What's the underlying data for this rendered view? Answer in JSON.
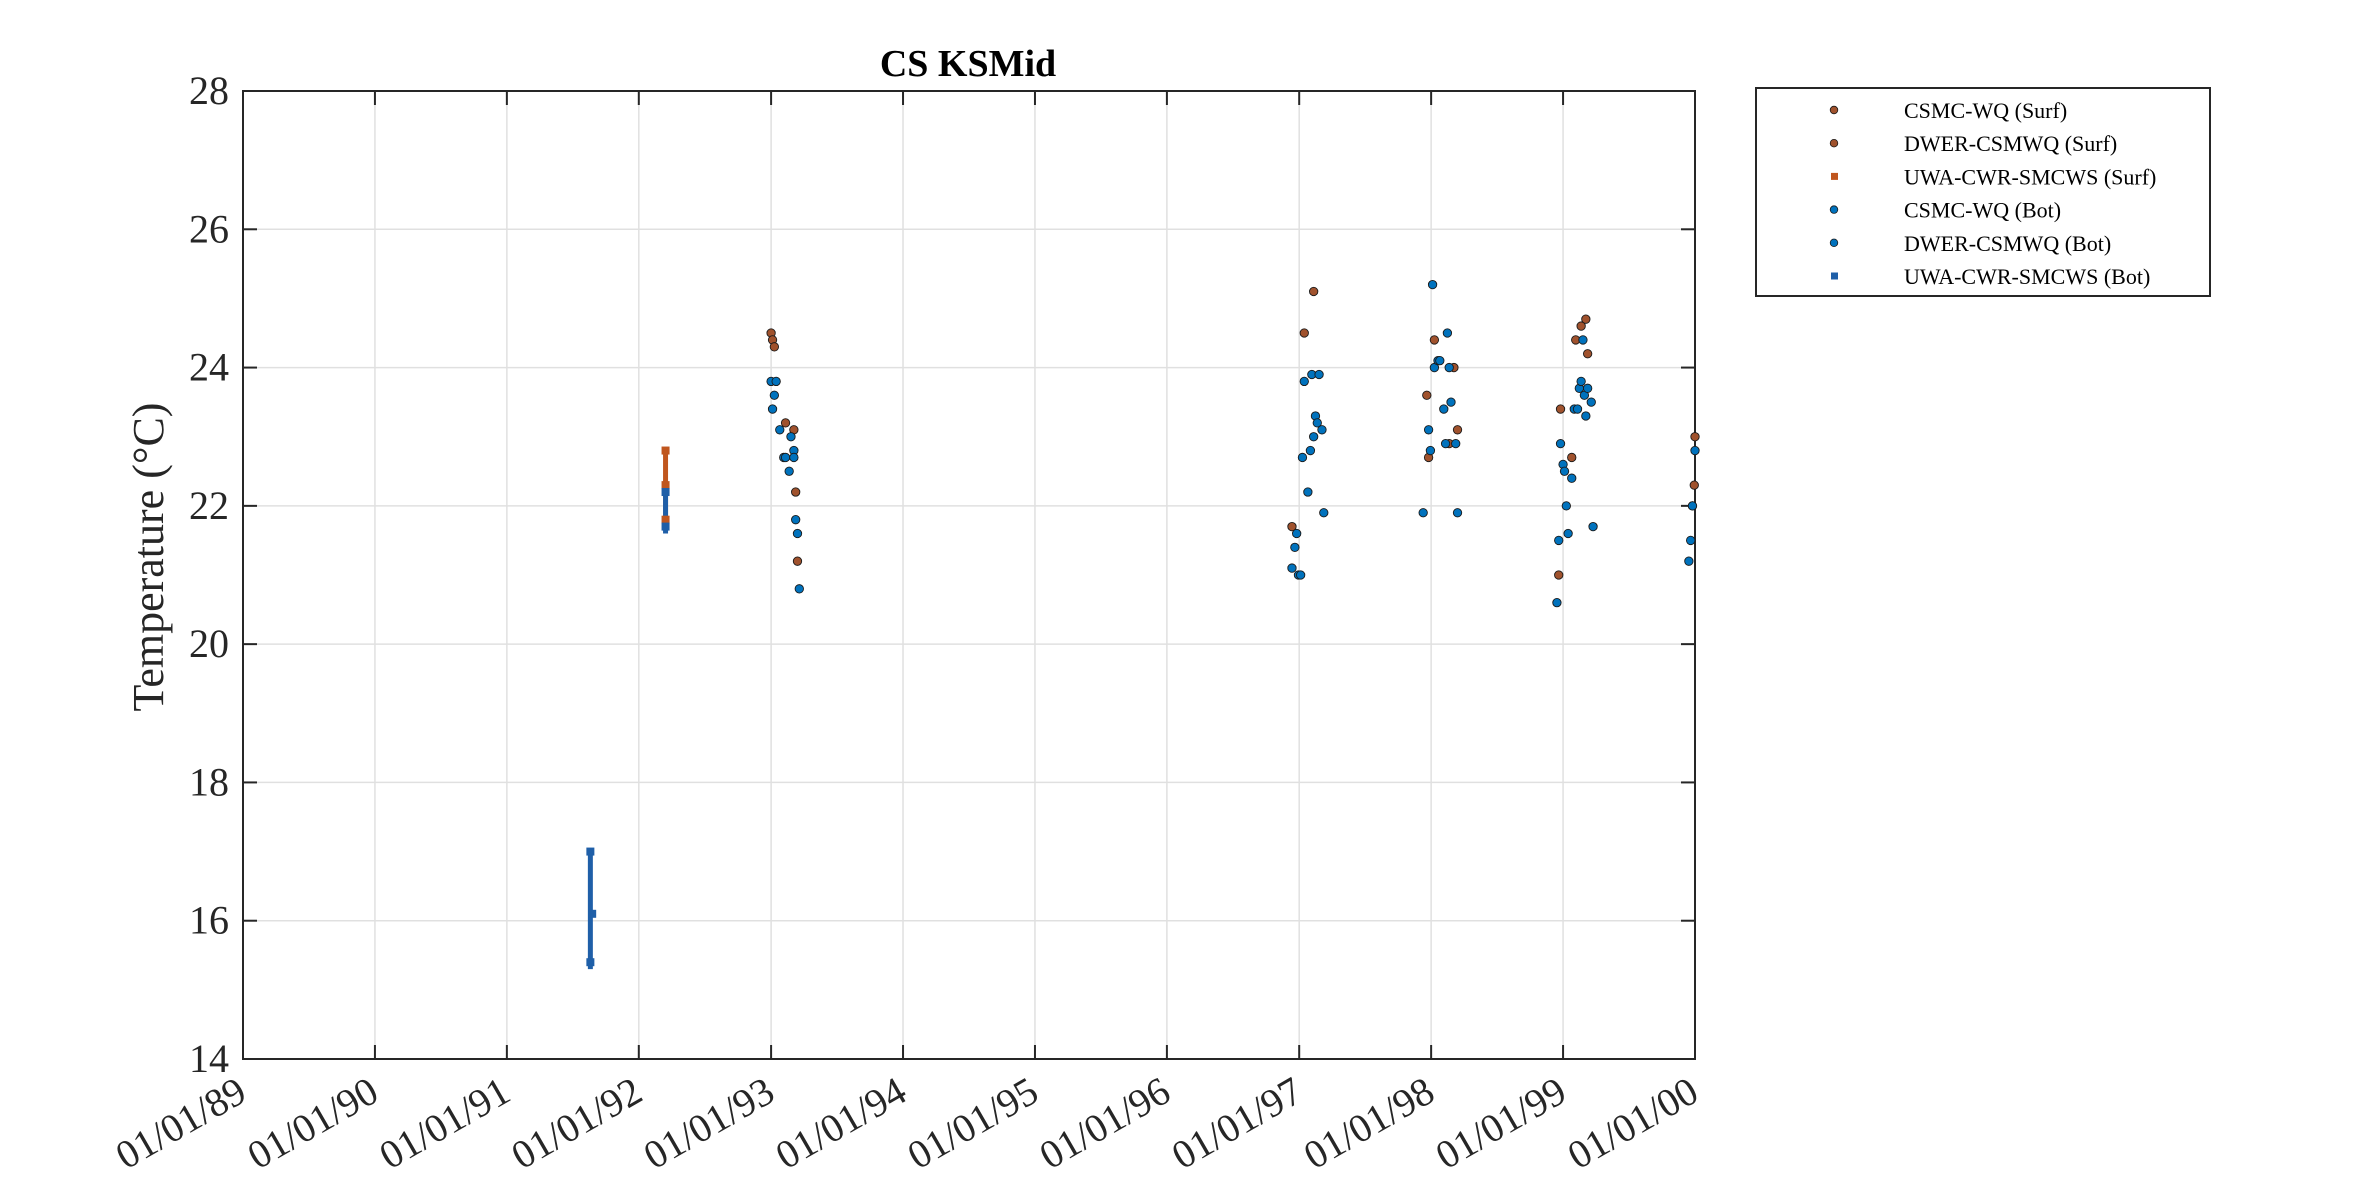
{
  "chart_data": {
    "type": "scatter",
    "title": "CS KSMid",
    "xlabel": "",
    "ylabel": "Temperature (°C)",
    "x_type": "date",
    "xlim": [
      "1989-01-01",
      "2000-01-01"
    ],
    "ylim": [
      14,
      28
    ],
    "x_ticks": [
      "1989-01-01",
      "1990-01-01",
      "1991-01-01",
      "1992-01-01",
      "1993-01-01",
      "1994-01-01",
      "1995-01-01",
      "1996-01-01",
      "1997-01-01",
      "1998-01-01",
      "1999-01-01",
      "2000-01-01"
    ],
    "x_tick_labels": [
      "01/01/89",
      "01/01/90",
      "01/01/91",
      "01/01/92",
      "01/01/93",
      "01/01/94",
      "01/01/95",
      "01/01/96",
      "01/01/97",
      "01/01/98",
      "01/01/99",
      "01/01/00"
    ],
    "y_ticks": [
      14,
      16,
      18,
      20,
      22,
      24,
      26,
      28
    ],
    "grid": true,
    "legend_position": "outside-top-right",
    "colors": {
      "surf": "#a0522d",
      "surf_line": "#c0561e",
      "bot": "#0072bd",
      "bot_line": "#1f5fa8",
      "grid": "#e0e0e0",
      "axis": "#262626"
    },
    "series": [
      {
        "name": "CSMC-WQ (Surf)",
        "marker": "circle",
        "color": "#a0522d",
        "points": [
          [
            "1993-01-01",
            24.5
          ],
          [
            "1993-01-05",
            24.4
          ],
          [
            "1993-01-10",
            24.3
          ],
          [
            "1993-02-10",
            23.2
          ],
          [
            "1993-03-05",
            23.1
          ],
          [
            "1993-03-10",
            22.2
          ],
          [
            "1993-03-15",
            21.2
          ],
          [
            "1996-12-12",
            21.7
          ],
          [
            "1997-01-15",
            24.5
          ],
          [
            "1997-02-10",
            25.1
          ],
          [
            "1997-12-20",
            23.6
          ],
          [
            "1997-12-25",
            22.7
          ],
          [
            "1998-01-10",
            24.4
          ],
          [
            "1998-02-20",
            22.9
          ],
          [
            "1998-03-05",
            24.0
          ],
          [
            "1998-03-15",
            23.1
          ],
          [
            "1998-12-20",
            21.0
          ],
          [
            "1998-12-25",
            23.4
          ],
          [
            "1999-01-25",
            22.7
          ],
          [
            "1999-02-05",
            24.4
          ],
          [
            "1999-02-20",
            24.6
          ],
          [
            "1999-03-05",
            24.7
          ],
          [
            "1999-03-10",
            24.2
          ],
          [
            "1999-12-25",
            22.0
          ],
          [
            "1999-12-30",
            22.3
          ],
          [
            "2000-01-01",
            23.0
          ]
        ]
      },
      {
        "name": "DWER-CSMWQ (Surf)",
        "marker": "circle",
        "color": "#a0522d",
        "points": []
      },
      {
        "name": "UWA-CWR-SMCWS (Surf)",
        "marker": "square",
        "color": "#c0561e",
        "points": [
          [
            "1992-03-15",
            22.3
          ],
          [
            "1992-03-15",
            22.8
          ],
          [
            "1992-03-15",
            21.8
          ]
        ]
      },
      {
        "name": "CSMC-WQ (Bot)",
        "marker": "circle",
        "color": "#0072bd",
        "points": [
          [
            "1993-01-01",
            23.8
          ],
          [
            "1993-01-05",
            23.4
          ],
          [
            "1993-01-10",
            23.6
          ],
          [
            "1993-01-15",
            23.8
          ],
          [
            "1993-01-25",
            23.1
          ],
          [
            "1993-02-05",
            22.7
          ],
          [
            "1993-02-10",
            22.7
          ],
          [
            "1993-02-20",
            22.5
          ],
          [
            "1993-02-25",
            23.0
          ],
          [
            "1993-03-05",
            22.8
          ],
          [
            "1993-03-05",
            22.7
          ],
          [
            "1993-03-10",
            21.8
          ],
          [
            "1993-03-15",
            21.6
          ],
          [
            "1993-03-20",
            20.8
          ],
          [
            "1996-12-12",
            21.1
          ],
          [
            "1996-12-20",
            21.4
          ],
          [
            "1996-12-25",
            21.6
          ],
          [
            "1996-12-30",
            21.0
          ],
          [
            "1997-01-05",
            21.0
          ],
          [
            "1997-01-10",
            22.7
          ],
          [
            "1997-01-15",
            23.8
          ],
          [
            "1997-01-25",
            22.2
          ],
          [
            "1997-02-01",
            22.8
          ],
          [
            "1997-02-05",
            23.9
          ],
          [
            "1997-02-10",
            23.0
          ],
          [
            "1997-02-15",
            23.3
          ],
          [
            "1997-02-20",
            23.2
          ],
          [
            "1997-02-25",
            23.9
          ],
          [
            "1997-03-05",
            23.1
          ],
          [
            "1997-03-10",
            21.9
          ],
          [
            "1997-12-10",
            21.9
          ],
          [
            "1997-12-25",
            23.1
          ],
          [
            "1997-12-30",
            22.8
          ],
          [
            "1998-01-05",
            25.2
          ],
          [
            "1998-01-10",
            24.0
          ],
          [
            "1998-01-20",
            24.1
          ],
          [
            "1998-01-25",
            24.1
          ],
          [
            "1998-02-05",
            23.4
          ],
          [
            "1998-02-10",
            22.9
          ],
          [
            "1998-02-15",
            24.5
          ],
          [
            "1998-02-20",
            24.0
          ],
          [
            "1998-02-25",
            23.5
          ],
          [
            "1998-03-10",
            22.9
          ],
          [
            "1998-03-15",
            21.9
          ],
          [
            "1998-12-15",
            20.6
          ],
          [
            "1998-12-20",
            21.5
          ],
          [
            "1998-12-25",
            22.9
          ],
          [
            "1999-01-01",
            22.6
          ],
          [
            "1999-01-05",
            22.5
          ],
          [
            "1999-01-10",
            22.0
          ],
          [
            "1999-01-15",
            21.6
          ],
          [
            "1999-01-25",
            22.4
          ],
          [
            "1999-02-01",
            23.4
          ],
          [
            "1999-02-10",
            23.4
          ],
          [
            "1999-02-15",
            23.7
          ],
          [
            "1999-02-20",
            23.8
          ],
          [
            "1999-02-25",
            24.4
          ],
          [
            "1999-03-01",
            23.6
          ],
          [
            "1999-03-05",
            23.3
          ],
          [
            "1999-03-10",
            23.7
          ],
          [
            "1999-03-20",
            23.5
          ],
          [
            "1999-03-25",
            21.7
          ],
          [
            "1999-12-15",
            21.2
          ],
          [
            "1999-12-20",
            21.5
          ],
          [
            "1999-12-25",
            22.0
          ],
          [
            "2000-01-01",
            22.8
          ]
        ]
      },
      {
        "name": "DWER-CSMWQ (Bot)",
        "marker": "circle",
        "color": "#0072bd",
        "points": []
      },
      {
        "name": "UWA-CWR-SMCWS (Bot)",
        "marker": "square",
        "color": "#1f5fa8",
        "points": [
          [
            "1991-08-20",
            15.4
          ],
          [
            "1991-08-20",
            17.0
          ],
          [
            "1991-08-25",
            16.1
          ],
          [
            "1992-03-15",
            21.7
          ],
          [
            "1992-03-15",
            22.2
          ]
        ]
      }
    ],
    "range_bars": [
      {
        "series": "UWA-CWR-SMCWS (Bot)",
        "date": "1991-08-20",
        "min": 15.3,
        "max": 17.0,
        "color": "#1f5fa8"
      },
      {
        "series": "UWA-CWR-SMCWS (Surf)",
        "date": "1992-03-15",
        "min": 21.8,
        "max": 22.8,
        "color": "#c0561e"
      },
      {
        "series": "UWA-CWR-SMCWS (Bot)",
        "date": "1992-03-15",
        "min": 21.6,
        "max": 22.2,
        "color": "#1f5fa8"
      }
    ]
  }
}
